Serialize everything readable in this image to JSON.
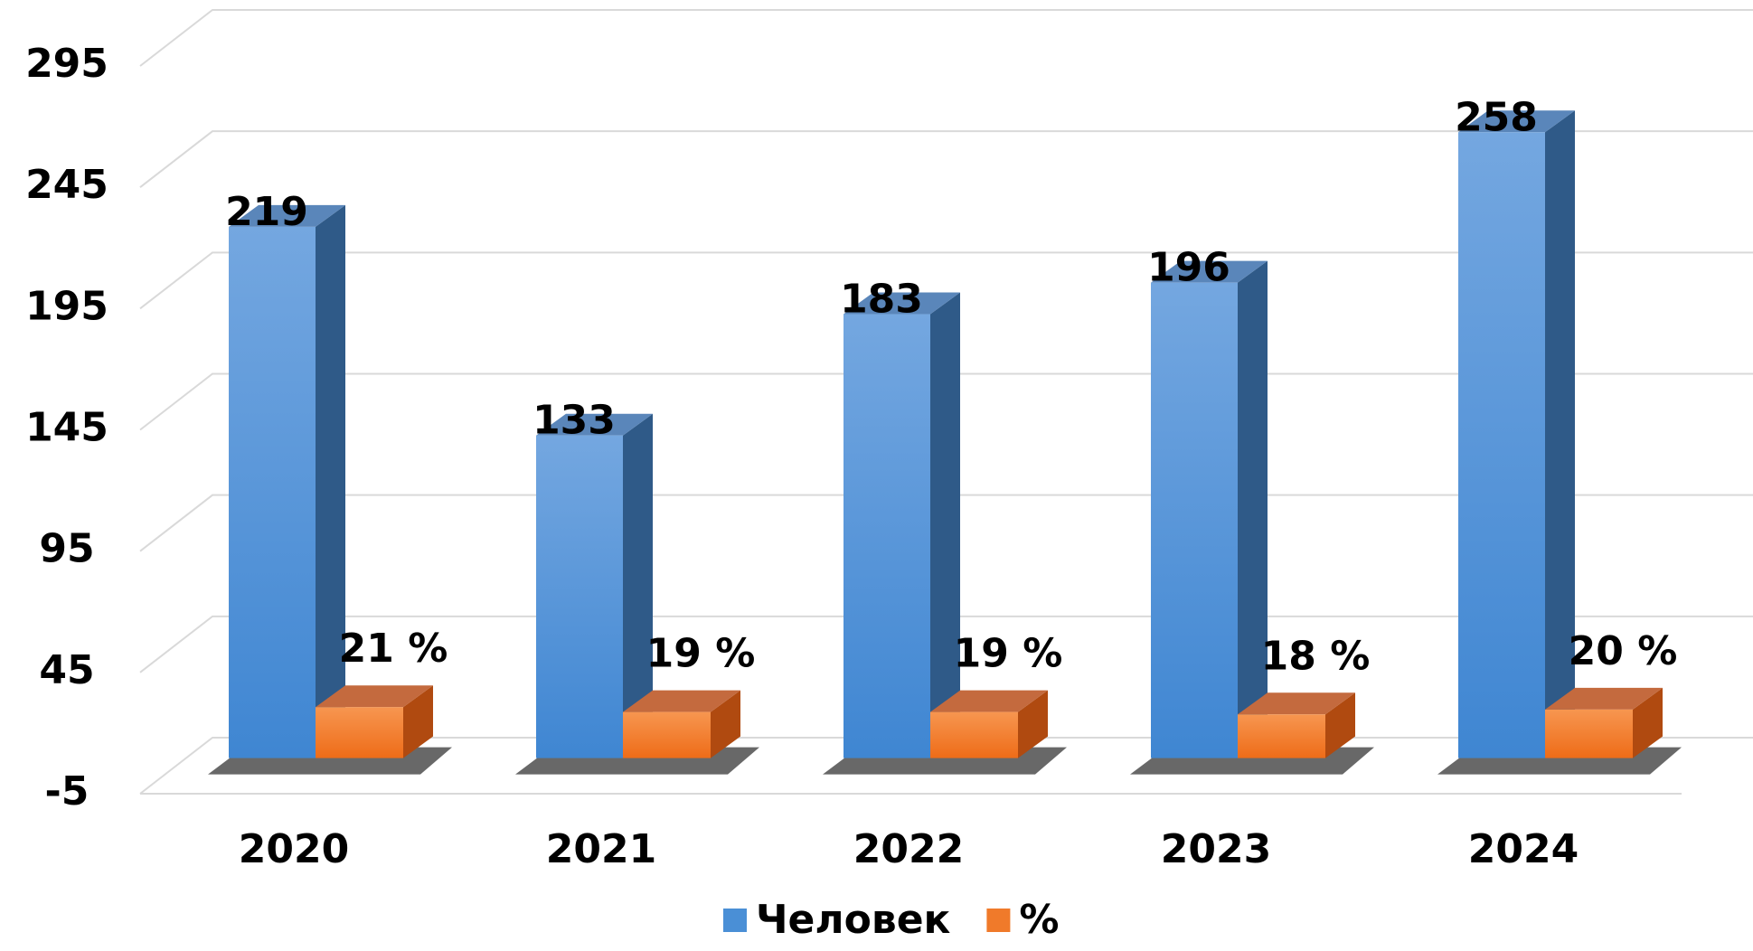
{
  "chart_data": {
    "type": "bar3d",
    "categories": [
      "2020",
      "2021",
      "2022",
      "2023",
      "2024"
    ],
    "series": [
      {
        "name": "Человек",
        "color": "#4a8fd6",
        "values": [
          219,
          133,
          183,
          196,
          258
        ]
      },
      {
        "name": "%",
        "color": "#f07a2a",
        "values": [
          21,
          19,
          19,
          18,
          20
        ],
        "value_labels": [
          "21 %",
          "19 %",
          "19 %",
          "18 %",
          "20 %"
        ]
      }
    ],
    "ylim": [
      -5,
      295
    ],
    "yticks": [
      -5,
      45,
      95,
      145,
      195,
      245,
      295
    ],
    "grid": true,
    "legend": "bottom"
  }
}
